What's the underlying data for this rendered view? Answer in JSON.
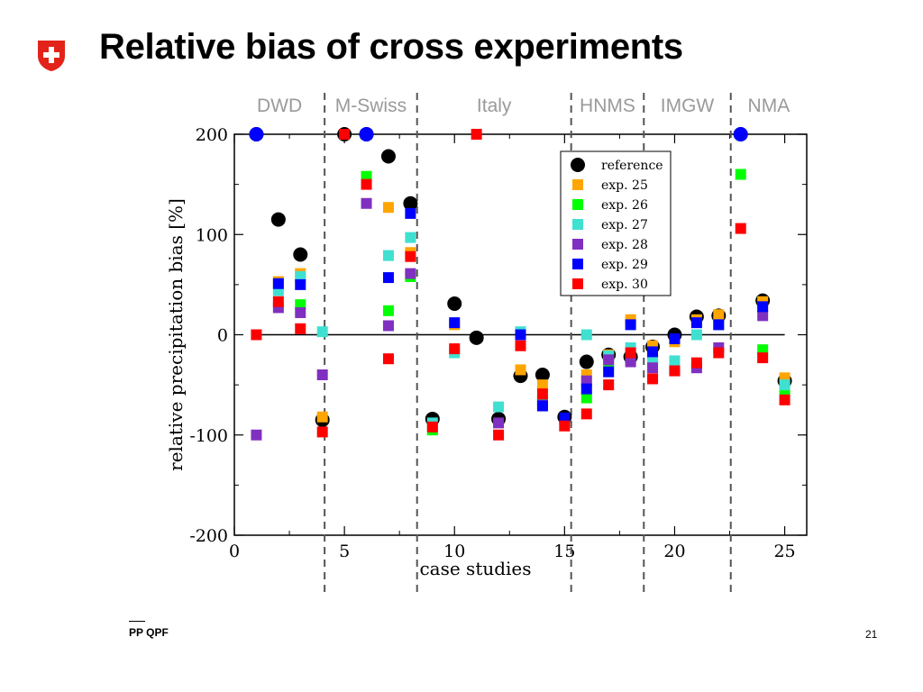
{
  "slide": {
    "title": "Relative bias of cross experiments",
    "footer": "PP QPF",
    "page_number": "21"
  },
  "logo": {
    "icon": "swiss-cross-shield-icon",
    "color": "#e2231a"
  },
  "chart_data": {
    "type": "scatter",
    "xlabel": "case studies",
    "ylabel": "relative precipitation bias [%]",
    "xlim": [
      0,
      26
    ],
    "ylim": [
      -200,
      200
    ],
    "xticks": [
      0,
      5,
      10,
      15,
      20,
      25
    ],
    "yticks": [
      -200,
      -100,
      0,
      100,
      200
    ],
    "minor_x_step": 2.5,
    "minor_y_step": 50,
    "zero_line": true,
    "legend_position": "top-right",
    "regions": [
      {
        "label": "DWD",
        "start": 0,
        "end": 4.1
      },
      {
        "label": "M-Swiss",
        "start": 4.1,
        "end": 8.3
      },
      {
        "label": "Italy",
        "start": 8.3,
        "end": 15.3
      },
      {
        "label": "HNMS",
        "start": 15.3,
        "end": 18.6
      },
      {
        "label": "IMGW",
        "start": 18.6,
        "end": 22.55
      },
      {
        "label": "NMA",
        "start": 22.55,
        "end": 26
      }
    ],
    "region_separators": [
      4.1,
      8.3,
      15.3,
      18.6,
      22.55
    ],
    "series": [
      {
        "name": "reference",
        "color": "#000000",
        "marker": "circle",
        "x": [
          1,
          2,
          3,
          4,
          5,
          6,
          7,
          8,
          9,
          10,
          11,
          12,
          13,
          14,
          15,
          16,
          17,
          18,
          19,
          20,
          21,
          22,
          23,
          24,
          25
        ],
        "y": [
          200,
          115,
          80,
          -85,
          200,
          200,
          178,
          131,
          -84,
          31,
          -3,
          -84,
          -41,
          -40,
          -82,
          -27,
          -20,
          -22,
          -12,
          0,
          18,
          19,
          200,
          34,
          -46
        ]
      },
      {
        "name": "exp. 25",
        "color": "#ffa500",
        "marker": "square",
        "x": [
          2,
          3,
          4,
          7,
          8,
          10,
          13,
          14,
          16,
          17,
          18,
          19,
          20,
          21,
          22,
          24,
          25
        ],
        "y": [
          53,
          61,
          -82,
          127,
          82,
          10,
          -35,
          -50,
          -40,
          -20,
          15,
          -11,
          -7,
          15,
          20,
          33,
          -43
        ]
      },
      {
        "name": "exp. 26",
        "color": "#00ff00",
        "marker": "square",
        "x": [
          3,
          6,
          7,
          8,
          9,
          14,
          16,
          17,
          18,
          19,
          23,
          24,
          25
        ],
        "y": [
          30,
          158,
          24,
          58,
          -95,
          -66,
          -63,
          -30,
          -24,
          -26,
          160,
          -15,
          -55
        ]
      },
      {
        "name": "exp. 27",
        "color": "#40e0d0",
        "marker": "square",
        "x": [
          2,
          3,
          4,
          7,
          8,
          9,
          10,
          12,
          13,
          16,
          17,
          18,
          19,
          20,
          21,
          22,
          25
        ],
        "y": [
          44,
          58,
          3,
          79,
          97,
          -88,
          -18,
          -72,
          3,
          0,
          -21,
          -13,
          -25,
          -26,
          0,
          10,
          -50
        ]
      },
      {
        "name": "exp. 28",
        "color": "#8030c0",
        "marker": "square",
        "x": [
          1,
          2,
          3,
          4,
          6,
          7,
          8,
          12,
          14,
          16,
          17,
          18,
          19,
          20,
          21,
          22,
          24
        ],
        "y": [
          -100,
          27,
          22,
          -40,
          131,
          9,
          61,
          -88,
          -70,
          -46,
          -25,
          -27,
          -33,
          -36,
          -33,
          -13,
          19
        ]
      },
      {
        "name": "exp. 29",
        "color": "#0000ff",
        "marker": "square",
        "x": [
          2,
          3,
          6,
          7,
          8,
          10,
          13,
          14,
          15,
          16,
          17,
          18,
          19,
          20,
          21,
          22,
          24
        ],
        "y": [
          51,
          50,
          200,
          57,
          121,
          12,
          0,
          -71,
          -83,
          -54,
          -37,
          10,
          -17,
          -4,
          12,
          10,
          28
        ]
      },
      {
        "name": "exp. 30",
        "color": "#ff0000",
        "marker": "square",
        "x": [
          1,
          2,
          3,
          4,
          5,
          6,
          7,
          8,
          9,
          10,
          11,
          12,
          13,
          14,
          15,
          16,
          17,
          18,
          19,
          20,
          21,
          22,
          23,
          24,
          25
        ],
        "y": [
          0,
          33,
          6,
          -97,
          200,
          150,
          -24,
          78,
          -92,
          -14,
          200,
          -100,
          -11,
          -59,
          -91,
          -79,
          -50,
          -18,
          -44,
          -36,
          -28,
          -18,
          106,
          -23,
          -65
        ]
      }
    ],
    "legend_order": [
      "reference",
      "exp. 25",
      "exp. 26",
      "exp. 27",
      "exp. 28",
      "exp. 29",
      "exp. 30"
    ]
  }
}
